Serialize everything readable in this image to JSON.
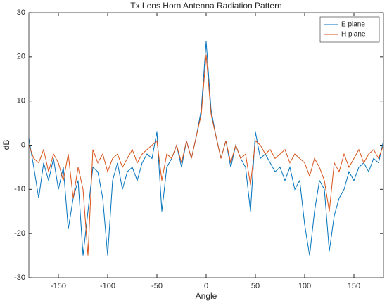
{
  "chart_data": {
    "type": "line",
    "title": "Tx Lens Horn Antenna Radiation Pattern",
    "x_label": "Angle",
    "y_label": "dB",
    "x": [
      -180,
      -175,
      -170,
      -165,
      -160,
      -155,
      -150,
      -145,
      -140,
      -135,
      -130,
      -125,
      -120,
      -115,
      -110,
      -105,
      -100,
      -95,
      -90,
      -85,
      -80,
      -75,
      -70,
      -65,
      -60,
      -55,
      -50,
      -45,
      -40,
      -35,
      -30,
      -25,
      -20,
      -15,
      -10,
      -5,
      0,
      5,
      10,
      15,
      20,
      25,
      30,
      35,
      40,
      45,
      50,
      55,
      60,
      65,
      70,
      75,
      80,
      85,
      90,
      95,
      100,
      105,
      110,
      115,
      120,
      125,
      130,
      135,
      140,
      145,
      150,
      155,
      160,
      165,
      170,
      175,
      180
    ],
    "series": [
      {
        "name": "E plane",
        "color": "#0072bd",
        "values": [
          1.5,
          -5,
          -12,
          -4,
          -8,
          -3,
          -10,
          -5,
          -19,
          -12,
          -8,
          -25,
          -15,
          -5,
          -6,
          -12,
          -25,
          -8,
          -4,
          -10,
          -6,
          -5,
          -8,
          -4,
          -2,
          -3,
          3,
          -15,
          -5,
          -3,
          0,
          -5,
          1,
          -3,
          2,
          8,
          23.5,
          8,
          2,
          -3,
          1,
          -5,
          0,
          -3,
          -5,
          -15,
          3,
          -3,
          -2,
          -4,
          -6,
          -5,
          -8,
          -5,
          -10,
          -8,
          -18,
          -25,
          -15,
          -8,
          -10,
          -24,
          -16,
          -12,
          -10,
          -6,
          -8,
          -5,
          -4,
          -6,
          -3,
          -4,
          1
        ]
      },
      {
        "name": "H plane",
        "color": "#d95319",
        "values": [
          0,
          -3,
          -4,
          -1,
          -6,
          -2,
          -4,
          -8,
          -2,
          -12,
          -5,
          -10,
          -25,
          -1,
          -4,
          -2,
          -6,
          -3,
          -2,
          -5,
          -3,
          -1,
          -4,
          -2,
          -1,
          0,
          1,
          -8,
          -2,
          -3,
          0,
          -4,
          1,
          -3,
          2,
          7,
          20.5,
          7,
          2,
          -3,
          1,
          -4,
          0,
          -3,
          -2,
          -9,
          1,
          0,
          -2,
          -1,
          -3,
          -2,
          -1,
          -4,
          -2,
          -3,
          -4,
          -7,
          -3,
          -5,
          -8,
          -15,
          -4,
          -6,
          -2,
          -5,
          -3,
          -1,
          -4,
          -2,
          -1,
          -3,
          0
        ]
      }
    ],
    "xlim": [
      -180,
      180
    ],
    "xticks": [
      -150,
      -100,
      -50,
      0,
      50,
      100,
      150
    ],
    "ylim": [
      -30,
      30
    ],
    "yticks": [
      -30,
      -20,
      -10,
      0,
      10,
      20,
      30
    ],
    "grid": false,
    "legend": "northeast"
  }
}
